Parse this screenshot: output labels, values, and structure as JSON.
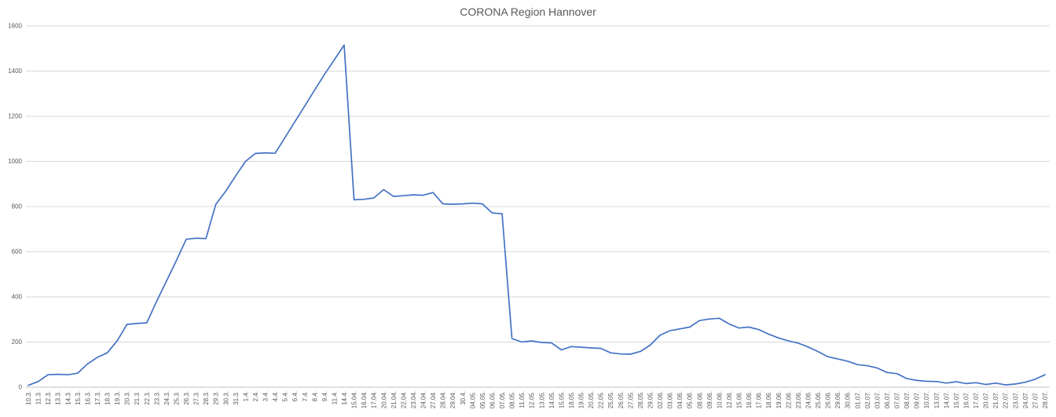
{
  "chart_data": {
    "type": "line",
    "title": "CORONA Region Hannover",
    "x": [
      "10.3.",
      "11.3.",
      "12.3.",
      "13.3.",
      "14.3.",
      "15.3.",
      "16.3.",
      "17.3.",
      "18.3.",
      "19.3.",
      "20.3.",
      "21.3.",
      "22.3.",
      "23.3.",
      "24.3.",
      "25.3.",
      "26.3.",
      "27.3.",
      "28.3.",
      "29.3.",
      "30.3.",
      "31.3.",
      "1.4.",
      "2.4.",
      "3.4.",
      "4.4.",
      "5.4.",
      "6.4.",
      "7.4.",
      "8.4.",
      "9.4.",
      "11.4.",
      "14.4.",
      "15.04.",
      "16.04.",
      "17.04.",
      "20.04.",
      "21.04.",
      "22.04.",
      "23.04.",
      "24.04.",
      "27.04.",
      "28.04.",
      "29.04.",
      "30.4.",
      "04.05.",
      "05.05.",
      "06.05.",
      "07.05.",
      "08.05.",
      "11.05.",
      "12.05.",
      "13.05.",
      "14.05.",
      "15.05.",
      "18.05.",
      "19.05.",
      "20.05.",
      "22.05.",
      "25.05.",
      "26.05.",
      "27.05.",
      "28.05.",
      "29.05.",
      "02.06.",
      "03.06.",
      "04.06.",
      "05.06.",
      "08.06.",
      "09.06.",
      "10.06.",
      "12.06.",
      "15.06.",
      "16.06.",
      "17.06.",
      "18.06.",
      "19.06.",
      "22.06.",
      "23.06.",
      "24.06.",
      "25.06.",
      "26.06.",
      "29.06.",
      "30.06.",
      "01.07.",
      "02.07.",
      "03.07.",
      "06.07.",
      "07.07.",
      "08.07.",
      "09.07.",
      "10.07.",
      "13.07.",
      "14.07.",
      "15.07.",
      "16.07.",
      "17.07.",
      "20.07.",
      "21.07.",
      "22.07.",
      "23.07.",
      "24.07.",
      "27.07.",
      "28.07."
    ],
    "values": [
      8,
      25,
      55,
      57,
      55,
      62,
      103,
      132,
      152,
      205,
      278,
      282,
      285,
      380,
      470,
      560,
      655,
      660,
      658,
      810,
      868,
      935,
      1000,
      1035,
      1038,
      1036,
      1105,
      1175,
      1245,
      1315,
      1385,
      1450,
      1515,
      830,
      832,
      838,
      875,
      845,
      848,
      852,
      850,
      862,
      812,
      810,
      812,
      815,
      812,
      772,
      768,
      215,
      200,
      205,
      198,
      196,
      165,
      180,
      177,
      174,
      172,
      152,
      147,
      146,
      158,
      186,
      230,
      250,
      258,
      266,
      295,
      302,
      305,
      280,
      262,
      266,
      255,
      235,
      218,
      205,
      195,
      178,
      158,
      135,
      125,
      115,
      100,
      95,
      85,
      65,
      60,
      38,
      30,
      26,
      25,
      18,
      24,
      16,
      20,
      12,
      18,
      10,
      14,
      22,
      35,
      55
    ],
    "ylim": [
      0,
      1600
    ],
    "yticks": [
      0,
      200,
      400,
      600,
      800,
      1000,
      1200,
      1400,
      1600
    ],
    "grid": true,
    "legend": "none",
    "line_color": "#4472c4",
    "grid_color": "#d9d9d9",
    "axis_color": "#c0c0c0",
    "text_color": "#595959"
  }
}
